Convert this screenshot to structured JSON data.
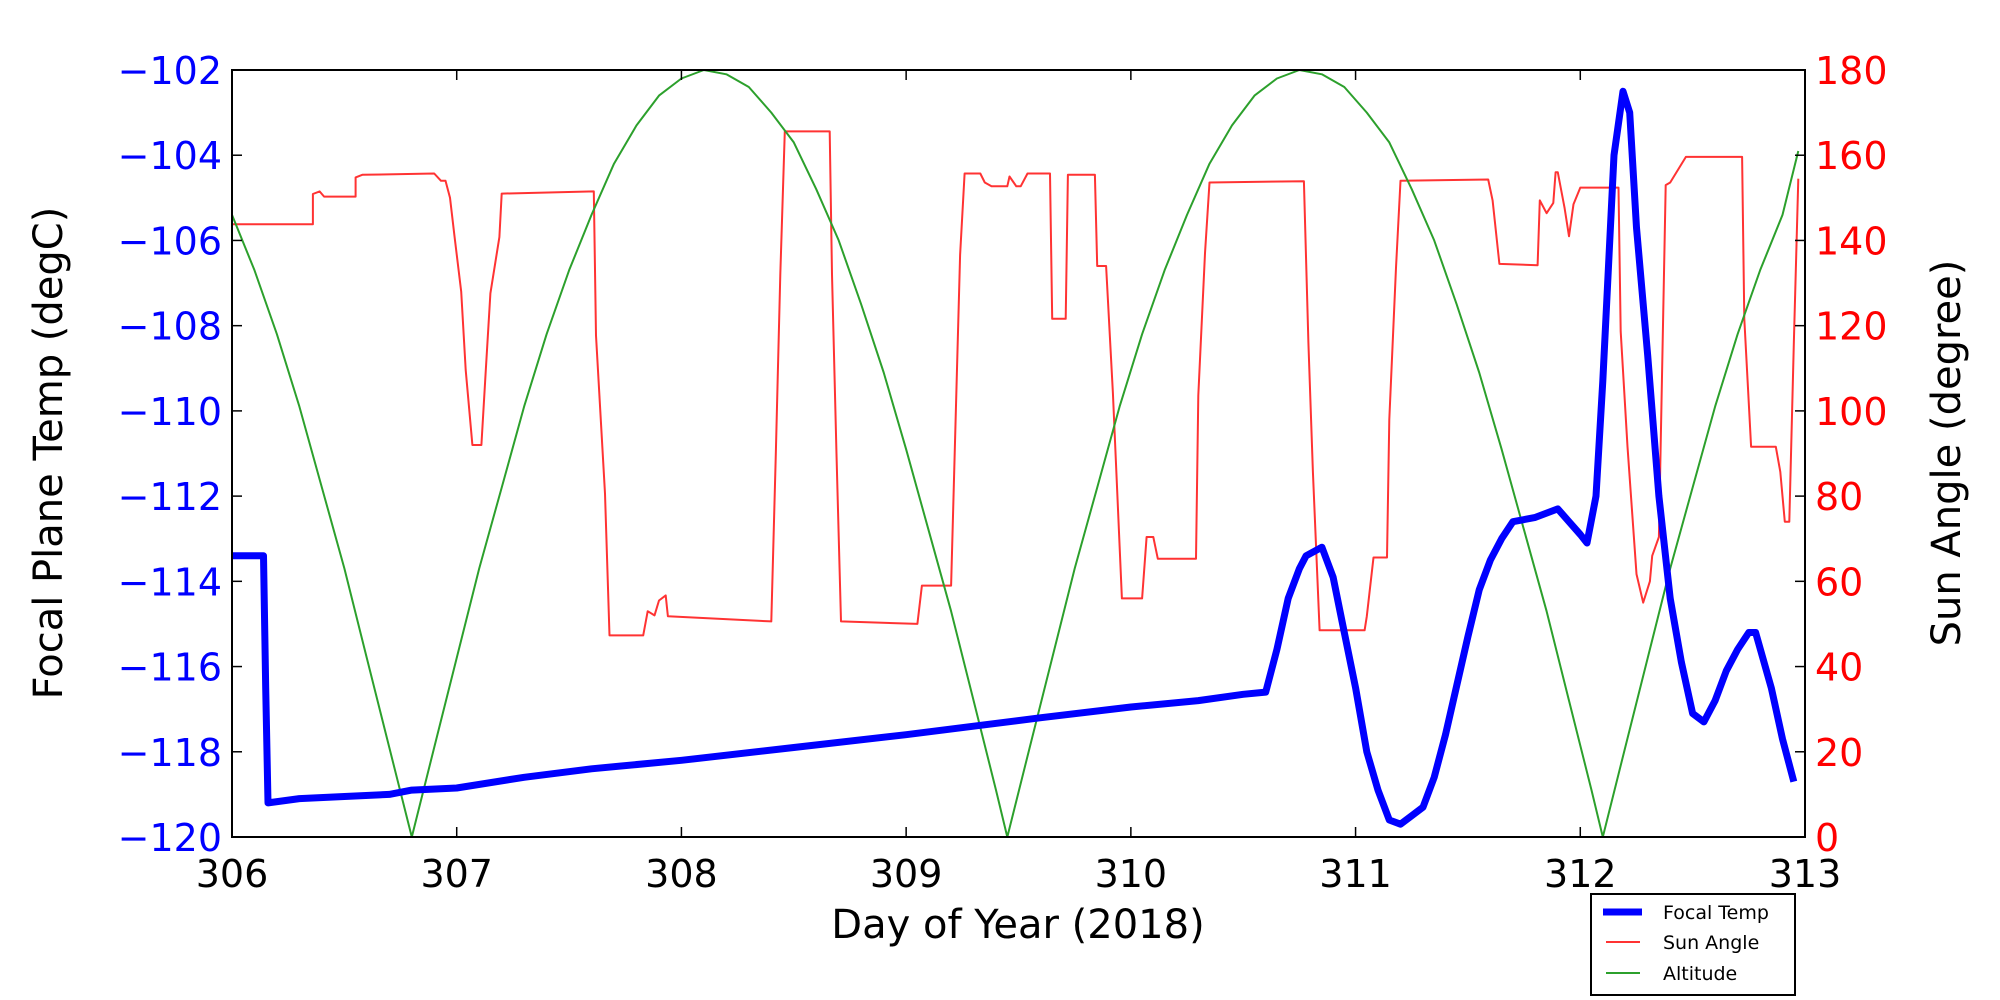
{
  "chart_data": {
    "type": "line",
    "title": "",
    "xlabel": "Day of Year (2018)",
    "ylabel_left": "Focal Plane Temp (degC)",
    "ylabel_right": "Sun Angle (degree)",
    "xlim": [
      306,
      313
    ],
    "ylim_left": [
      -120,
      -102
    ],
    "ylim_right": [
      0,
      180
    ],
    "x_ticks": [
      "306",
      "307",
      "308",
      "309",
      "310",
      "311",
      "312",
      "313"
    ],
    "y_ticks_left": [
      "−120",
      "−118",
      "−116",
      "−114",
      "−112",
      "−110",
      "−108",
      "−106",
      "−104",
      "−102"
    ],
    "y_ticks_right": [
      "0",
      "20",
      "40",
      "60",
      "80",
      "100",
      "120",
      "140",
      "160",
      "180"
    ],
    "grid": false,
    "legend_position": "bottom-right outside",
    "colors": {
      "left_axis": "#0000ff",
      "right_axis": "#ff0000",
      "focal": "#0000ff",
      "sun": "#ff3333",
      "altitude": "#2ca02c"
    },
    "series": [
      {
        "name": "Focal Temp",
        "axis": "left",
        "x": [
          306.0,
          306.14,
          306.15,
          306.16,
          306.3,
          306.5,
          306.7,
          306.8,
          307.0,
          307.3,
          307.6,
          308.0,
          308.5,
          309.0,
          309.3,
          309.6,
          310.0,
          310.3,
          310.5,
          310.6,
          310.65,
          310.7,
          310.75,
          310.78,
          310.85,
          310.9,
          310.95,
          311.0,
          311.05,
          311.1,
          311.15,
          311.2,
          311.25,
          311.3,
          311.35,
          311.4,
          311.5,
          311.55,
          311.6,
          311.65,
          311.7,
          311.8,
          311.9,
          311.95,
          312.0,
          312.03,
          312.07,
          312.1,
          312.15,
          312.19,
          312.22,
          312.25,
          312.3,
          312.35,
          312.4,
          312.45,
          312.5,
          312.55,
          312.6,
          312.65,
          312.7,
          312.75,
          312.78,
          312.85,
          312.9,
          312.95
        ],
        "y": [
          -113.4,
          -113.4,
          -116.5,
          -119.2,
          -119.1,
          -119.05,
          -119.0,
          -118.9,
          -118.85,
          -118.6,
          -118.4,
          -118.2,
          -117.9,
          -117.6,
          -117.4,
          -117.2,
          -116.95,
          -116.8,
          -116.65,
          -116.6,
          -115.6,
          -114.4,
          -113.7,
          -113.4,
          -113.2,
          -113.9,
          -115.2,
          -116.5,
          -118.0,
          -118.9,
          -119.6,
          -119.7,
          -119.5,
          -119.3,
          -118.6,
          -117.6,
          -115.3,
          -114.2,
          -113.5,
          -113.0,
          -112.6,
          -112.5,
          -112.3,
          -112.6,
          -112.9,
          -113.1,
          -112.0,
          -109.3,
          -104.0,
          -102.5,
          -103.0,
          -105.7,
          -108.7,
          -112.0,
          -114.4,
          -115.9,
          -117.1,
          -117.3,
          -116.8,
          -116.1,
          -115.6,
          -115.2,
          -115.2,
          -116.5,
          -117.7,
          -118.7
        ]
      },
      {
        "name": "Sun Angle",
        "axis": "right",
        "x": [
          306.0,
          306.36,
          306.36,
          306.39,
          306.41,
          306.55,
          306.55,
          306.58,
          306.9,
          306.93,
          306.95,
          306.97,
          306.99,
          307.02,
          307.04,
          307.07,
          307.11,
          307.13,
          307.15,
          307.19,
          307.2,
          307.61,
          307.62,
          307.66,
          307.68,
          307.83,
          307.85,
          307.88,
          307.9,
          307.93,
          307.94,
          308.4,
          308.42,
          308.44,
          308.46,
          308.66,
          308.67,
          308.69,
          308.71,
          309.05,
          309.07,
          309.2,
          309.24,
          309.26,
          309.33,
          309.35,
          309.38,
          309.45,
          309.46,
          309.49,
          309.51,
          309.54,
          309.64,
          309.65,
          309.71,
          309.72,
          309.84,
          309.85,
          309.89,
          309.92,
          309.95,
          309.96,
          310.05,
          310.07,
          310.1,
          310.12,
          310.29,
          310.3,
          310.33,
          310.35,
          310.77,
          310.79,
          310.81,
          310.84,
          311.04,
          311.05,
          311.08,
          311.14,
          311.15,
          311.18,
          311.2,
          311.59,
          311.61,
          311.64,
          311.81,
          311.82,
          311.85,
          311.88,
          311.89,
          311.9,
          311.93,
          311.95,
          311.97,
          312.0,
          312.17,
          312.18,
          312.21,
          312.25,
          312.28,
          312.31,
          312.32,
          312.35,
          312.38,
          312.4,
          312.47,
          312.72,
          312.73,
          312.76,
          312.87,
          312.89,
          312.91,
          312.93,
          312.95,
          312.97
        ],
        "y": [
          143.8,
          143.8,
          150.9,
          151.5,
          150.3,
          150.3,
          154.8,
          155.4,
          155.7,
          154,
          154,
          150,
          141,
          128,
          109.6,
          92,
          92,
          110,
          127.6,
          140.8,
          151,
          151.5,
          117.7,
          80.6,
          47.3,
          47.3,
          53,
          52,
          55.5,
          56.7,
          51.8,
          50.6,
          89.8,
          132,
          165.6,
          165.6,
          132,
          89.8,
          50.6,
          50,
          59,
          59,
          136.6,
          155.7,
          155.7,
          153.6,
          152.7,
          152.7,
          155,
          152.7,
          152.7,
          155.7,
          155.7,
          121.6,
          121.6,
          155.4,
          155.4,
          134,
          134,
          104.2,
          68.3,
          56,
          56,
          70.4,
          70.4,
          65.3,
          65.3,
          103.6,
          137,
          153.6,
          153.9,
          116,
          85.7,
          48.5,
          48.5,
          51.8,
          65.6,
          65.6,
          98,
          133.6,
          154,
          154.3,
          149.4,
          134.5,
          134.2,
          149.4,
          146.4,
          148.8,
          156,
          156,
          147.6,
          141,
          148.5,
          152.4,
          152.4,
          118.6,
          91.6,
          61.7,
          55,
          60,
          66,
          70.4,
          153,
          153.6,
          159.6,
          159.6,
          121.6,
          91.6,
          91.6,
          85.7,
          74,
          74,
          115.6,
          154.5
        ]
      },
      {
        "name": "Altitude",
        "axis": "right",
        "x": [
          306.0,
          306.1,
          306.2,
          306.3,
          306.4,
          306.5,
          306.6,
          306.7,
          306.8,
          306.9,
          307.0,
          307.1,
          307.2,
          307.3,
          307.4,
          307.5,
          307.6,
          307.7,
          307.8,
          307.9,
          308.0,
          308.1,
          308.2,
          308.3,
          308.4,
          308.5,
          308.6,
          308.7,
          308.8,
          308.9,
          309.0,
          309.1,
          309.2,
          309.3,
          309.4,
          309.45,
          309.55,
          309.65,
          309.75,
          309.85,
          309.95,
          310.05,
          310.15,
          310.25,
          310.35,
          310.45,
          310.55,
          310.65,
          310.75,
          310.85,
          310.95,
          311.05,
          311.15,
          311.25,
          311.35,
          311.45,
          311.55,
          311.65,
          311.75,
          311.85,
          311.95,
          312.05,
          312.1,
          312.2,
          312.3,
          312.4,
          312.5,
          312.6,
          312.7,
          312.8,
          312.9,
          312.97
        ],
        "y": [
          146,
          133,
          118,
          101,
          82,
          63,
          42,
          21,
          0,
          21,
          42,
          63,
          82,
          101,
          118,
          133,
          146,
          158,
          167,
          174,
          178,
          180,
          179,
          176,
          170,
          163,
          152,
          140,
          125,
          109,
          91,
          72,
          53,
          32,
          11,
          0,
          21,
          42,
          63,
          82,
          101,
          118,
          133,
          146,
          158,
          167,
          174,
          178,
          180,
          179,
          176,
          170,
          163,
          152,
          140,
          125,
          109,
          91,
          72,
          53,
          32,
          11,
          0,
          21,
          42,
          63,
          82,
          101,
          118,
          133,
          146,
          161
        ]
      }
    ]
  }
}
